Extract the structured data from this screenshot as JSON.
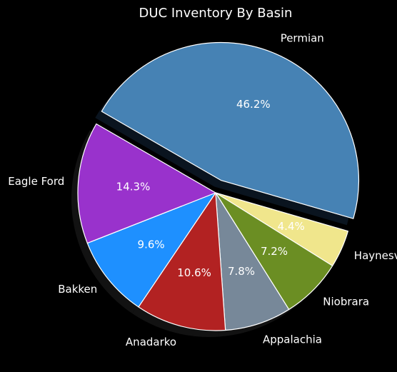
{
  "chart_data": {
    "type": "pie",
    "title": "DUC Inventory By Basin",
    "slices": [
      {
        "label": "Permian",
        "value": 46.2,
        "pct_label": "46.2%",
        "color": "#4682b4",
        "exploded": true
      },
      {
        "label": "Haynesville",
        "value": 4.4,
        "pct_label": "4.4%",
        "color": "#f0e68c",
        "exploded": false
      },
      {
        "label": "Niobrara",
        "value": 7.2,
        "pct_label": "7.2%",
        "color": "#6b8e23",
        "exploded": false
      },
      {
        "label": "Appalachia",
        "value": 7.8,
        "pct_label": "7.8%",
        "color": "#778899",
        "exploded": false
      },
      {
        "label": "Anadarko",
        "value": 10.6,
        "pct_label": "10.6%",
        "color": "#b22222",
        "exploded": false
      },
      {
        "label": "Bakken",
        "value": 9.6,
        "pct_label": "9.6%",
        "color": "#1e90ff",
        "exploded": false
      },
      {
        "label": "Eagle Ford",
        "value": 14.3,
        "pct_label": "14.3%",
        "color": "#9932cc",
        "exploded": false
      }
    ],
    "shadow": true,
    "edge_color": "#ffffff",
    "background": "#000000"
  }
}
